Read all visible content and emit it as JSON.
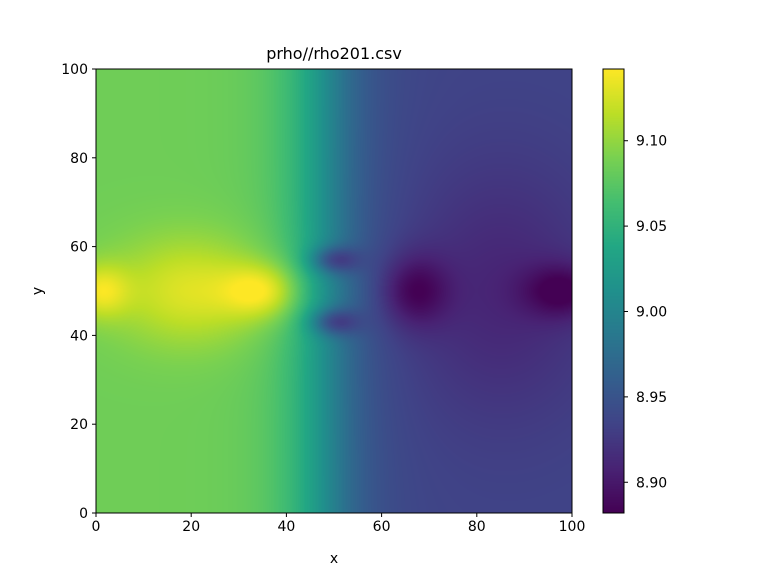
{
  "chart_data": {
    "type": "heatmap",
    "title": "prho//rho201.csv",
    "xlabel": "x",
    "ylabel": "y",
    "xlim": [
      0,
      100
    ],
    "ylim": [
      0,
      100
    ],
    "xticks": [
      0,
      20,
      40,
      60,
      80,
      100
    ],
    "yticks": [
      0,
      20,
      40,
      60,
      80,
      100
    ],
    "colormap": "viridis",
    "colorbar": {
      "range": [
        8.882,
        9.142
      ],
      "ticks": [
        8.9,
        8.95,
        9.0,
        9.05,
        9.1
      ],
      "tick_labels": [
        "8.90",
        "8.95",
        "9.00",
        "9.05",
        "9.10"
      ]
    },
    "field": {
      "description_of_axes": "x across (0-100), y up (0-100)",
      "background_left": 9.085,
      "background_right": 8.935,
      "transition_center_x": 48,
      "features": [
        {
          "kind": "bright_lobe",
          "center": [
            20,
            50
          ],
          "peak": 9.13
        },
        {
          "kind": "bright_lobe",
          "center": [
            35,
            50
          ],
          "peak": 9.135
        },
        {
          "kind": "bright_lobe",
          "center": [
            1,
            50
          ],
          "peak": 9.13
        },
        {
          "kind": "dark_lobe",
          "center": [
            50,
            57
          ],
          "peak": 8.895
        },
        {
          "kind": "dark_lobe",
          "center": [
            50,
            43
          ],
          "peak": 8.895
        },
        {
          "kind": "dark_lobe",
          "center": [
            67,
            50
          ],
          "peak": 8.89
        },
        {
          "kind": "dark_lobe",
          "center": [
            98,
            50
          ],
          "peak": 8.89
        }
      ]
    }
  }
}
